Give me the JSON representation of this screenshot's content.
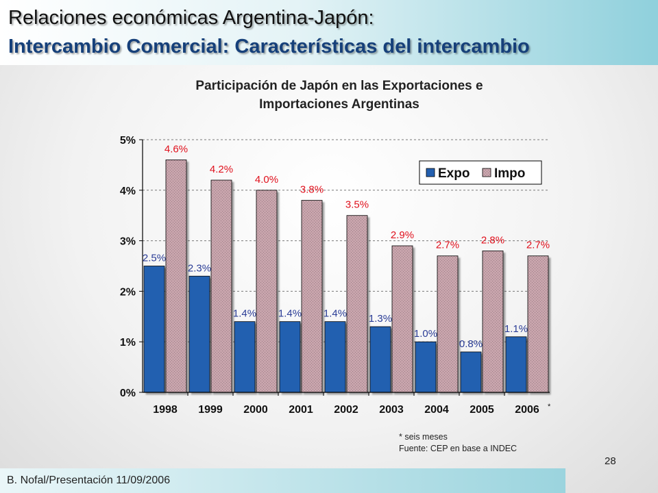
{
  "slide": {
    "title_line1": "Relaciones económicas Argentina-Japón:",
    "title_line2": "Intercambio Comercial: Características del intercambio",
    "chart_title_line1": "Participación de Japón en las Exportaciones e",
    "chart_title_line2": "Importaciones Argentinas",
    "note": "* seis meses",
    "source": "Fuente: CEP en base a INDEC",
    "page_number": "28",
    "footer": "B. Nofal/Presentación 11/09/2006"
  },
  "colors": {
    "expo_fill": "#2460b0",
    "impo_fill": "#c8a4ac",
    "expo_label": "#2a3c96",
    "impo_label": "#e0101c"
  },
  "chart_data": {
    "type": "bar",
    "title": "Participación de Japón en las Exportaciones e Importaciones Argentinas",
    "categories": [
      "1998",
      "1999",
      "2000",
      "2001",
      "2002",
      "2003",
      "2004",
      "2005",
      "2006"
    ],
    "category_suffix_last": "*",
    "series": [
      {
        "name": "Expo",
        "values": [
          2.5,
          2.3,
          1.4,
          1.4,
          1.4,
          1.3,
          1.0,
          0.8,
          1.1
        ],
        "labels": [
          "2.5%",
          "2.3%",
          "1.4%",
          "1.4%",
          "1.4%",
          "1.3%",
          "1.0%",
          "0.8%",
          "1.1%"
        ]
      },
      {
        "name": "Impo",
        "values": [
          4.6,
          4.2,
          4.0,
          3.8,
          3.5,
          2.9,
          2.7,
          2.8,
          2.7
        ],
        "labels": [
          "4.6%",
          "4.2%",
          "4.0%",
          "3.8%",
          "3.5%",
          "2.9%",
          "2.7%",
          "2.8%",
          "2.7%"
        ]
      }
    ],
    "ylim": [
      0,
      5
    ],
    "yticks": [
      "0%",
      "1%",
      "2%",
      "3%",
      "4%",
      "5%"
    ],
    "grid": "horizontal-dashed",
    "legend_position": "top-right"
  }
}
